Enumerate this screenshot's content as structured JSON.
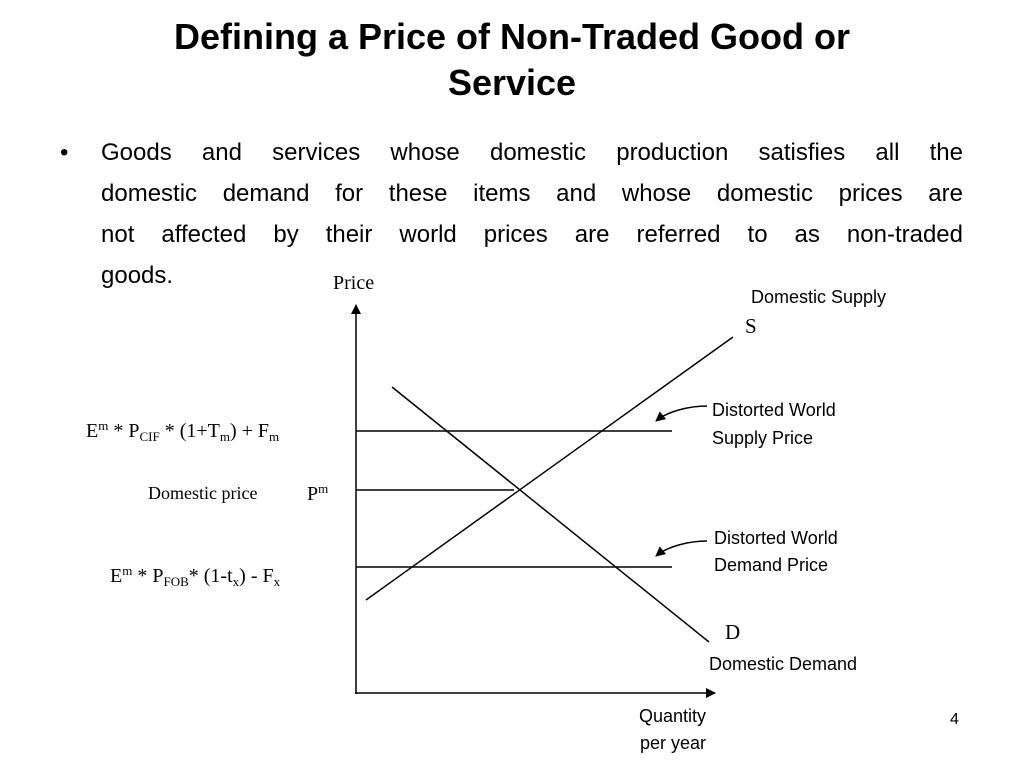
{
  "title": {
    "line1": "Defining a Price of Non-Traded Good or",
    "line2": "Service"
  },
  "bullet": {
    "lines": [
      "Goods and services whose domestic production satisfies all the",
      "domestic demand for these items and whose domestic prices are",
      "not affected by their world prices are referred to as non-traded",
      "goods."
    ]
  },
  "diagram": {
    "y_axis_label": "Price",
    "x_axis_label_line1": "Quantity",
    "x_axis_label_line2": "per year",
    "supply_curve": {
      "title": "Domestic Supply",
      "symbol": "S"
    },
    "demand_curve": {
      "title": "Domestic Demand",
      "symbol": "D"
    },
    "cif_price": {
      "E": "E",
      "E_sup": "m",
      "mult1": " * P",
      "P_sub": "CIF",
      "mult2": " * (1+T",
      "T_sub": "m",
      "rest": ") + F",
      "F_sub": "m"
    },
    "domestic_price": {
      "label": "Domestic price",
      "P": "P",
      "P_sup": "m"
    },
    "fob_price": {
      "E": "E",
      "E_sup": "m",
      "mult1": " * P",
      "P_sub": "FOB",
      "mult2": "* (1-t",
      "t_sub": "x",
      "rest": ") - F",
      "F_sub": "x"
    },
    "supply_price_note": {
      "line1": "Distorted World",
      "line2": "Supply Price"
    },
    "demand_price_note": {
      "line1": "Distorted World",
      "line2": "Demand Price"
    }
  },
  "page_number": "4"
}
